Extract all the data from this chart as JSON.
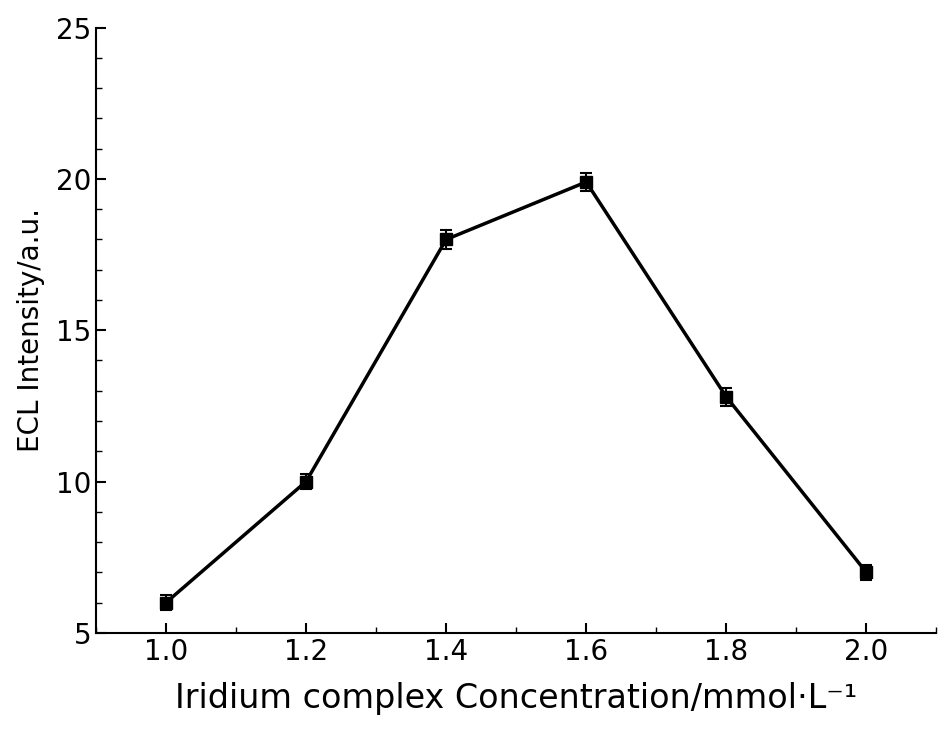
{
  "x": [
    1.0,
    1.2,
    1.4,
    1.6,
    1.8,
    2.0
  ],
  "y": [
    6.0,
    10.0,
    18.0,
    19.9,
    12.8,
    7.0
  ],
  "yerr": [
    0.25,
    0.25,
    0.3,
    0.3,
    0.3,
    0.25
  ],
  "xlabel": "Iridium complex Concentration/mmol·L⁻¹",
  "ylabel": "ECL Intensity/a.u.",
  "xlim": [
    0.9,
    2.1
  ],
  "ylim": [
    5,
    25
  ],
  "xticks": [
    1.0,
    1.2,
    1.4,
    1.6,
    1.8,
    2.0
  ],
  "yticks": [
    5,
    10,
    15,
    20,
    25
  ],
  "line_color": "#000000",
  "marker": "s",
  "marker_color": "#000000",
  "marker_size": 8,
  "line_width": 2.5,
  "capsize": 4,
  "elinewidth": 1.5,
  "xlabel_fontsize": 24,
  "ylabel_fontsize": 20,
  "tick_fontsize": 20,
  "background_color": "#ffffff"
}
